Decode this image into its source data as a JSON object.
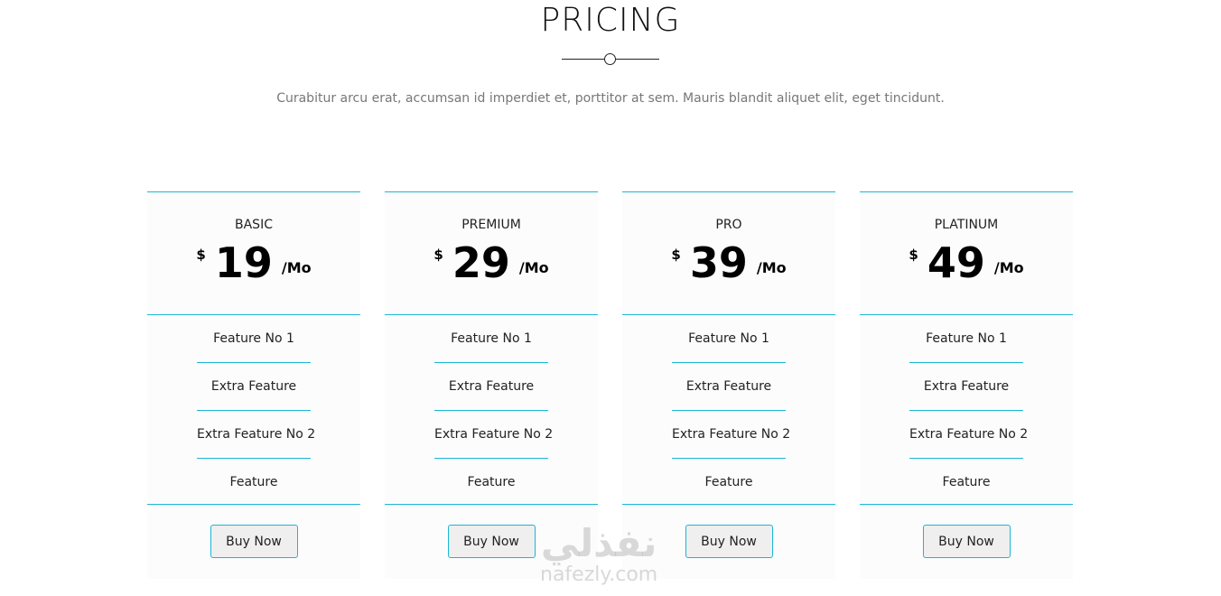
{
  "header": {
    "title": "PRICING",
    "subtitle": "Curabitur arcu erat, accumsan id imperdiet et, porttitor at sem. Mauris blandit aliquet elit, eget tincidunt."
  },
  "accent_color": "#1ab7d4",
  "plans": [
    {
      "name": "BASIC",
      "currency": "$",
      "price": "19",
      "period": "/Mo",
      "features": [
        "Feature No 1",
        "Extra Feature",
        "Extra Feature No 2",
        "Feature"
      ],
      "button": "Buy Now"
    },
    {
      "name": "PREMIUM",
      "currency": "$",
      "price": "29",
      "period": "/Mo",
      "features": [
        "Feature No 1",
        "Extra Feature",
        "Extra Feature No 2",
        "Feature"
      ],
      "button": "Buy Now"
    },
    {
      "name": "PRO",
      "currency": "$",
      "price": "39",
      "period": "/Mo",
      "features": [
        "Feature No 1",
        "Extra Feature",
        "Extra Feature No 2",
        "Feature"
      ],
      "button": "Buy Now"
    },
    {
      "name": "PLATINUM",
      "currency": "$",
      "price": "49",
      "period": "/Mo",
      "features": [
        "Feature No 1",
        "Extra Feature",
        "Extra Feature No 2",
        "Feature"
      ],
      "button": "Buy Now"
    }
  ],
  "watermark": {
    "arabic": "نفذلي",
    "latin": "nafezly.com"
  }
}
